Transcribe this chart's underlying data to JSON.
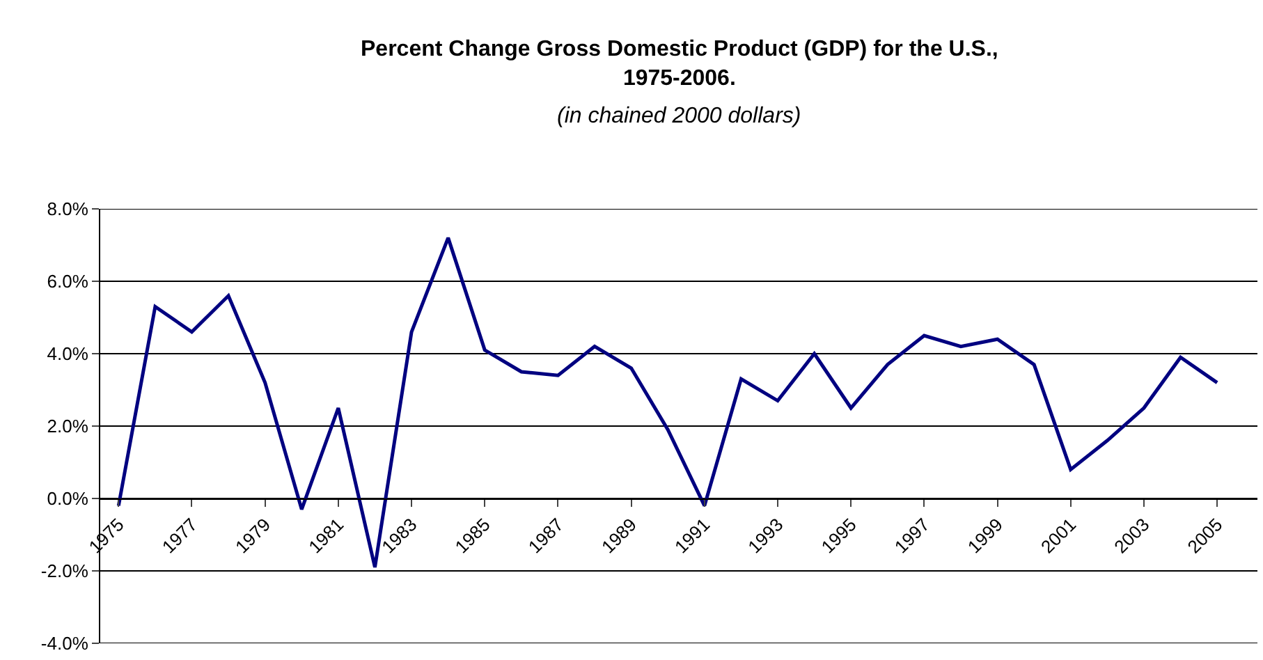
{
  "chart_data": {
    "type": "line",
    "title": "Percent Change Gross Domestic Product (GDP) for the U.S.,\n1975-2006.",
    "subtitle": "(in chained 2000 dollars)",
    "categories": [
      "1975",
      null,
      "1977",
      null,
      "1979",
      null,
      "1981",
      null,
      "1983",
      null,
      "1985",
      null,
      "1987",
      null,
      "1989",
      null,
      "1991",
      null,
      "1993",
      null,
      "1995",
      null,
      "1997",
      null,
      "1999",
      null,
      "2001",
      null,
      "2003",
      null,
      "2005"
    ],
    "series": [
      {
        "color": "#000080",
        "values": [
          -0.2,
          5.3,
          4.6,
          5.6,
          3.2,
          -0.3,
          2.5,
          -1.9,
          4.6,
          7.2,
          4.1,
          3.5,
          3.4,
          4.2,
          3.6,
          1.9,
          -0.2,
          3.3,
          2.7,
          4.0,
          2.5,
          3.7,
          4.5,
          4.2,
          4.4,
          3.7,
          0.8,
          1.6,
          2.5,
          3.9,
          3.2
        ]
      }
    ],
    "ylim": [
      -4,
      8
    ],
    "yticks": [
      {
        "value": -4,
        "label": "-4.0%"
      },
      {
        "value": -2,
        "label": "-2.0%"
      },
      {
        "value": 0,
        "label": "0.0%"
      },
      {
        "value": 2,
        "label": "2.0%"
      },
      {
        "value": 4,
        "label": "4.0%"
      },
      {
        "value": 6,
        "label": "6.0%"
      },
      {
        "value": 8,
        "label": "8.0%"
      }
    ],
    "grid": "y",
    "marker": "none",
    "line_style": "solid"
  }
}
